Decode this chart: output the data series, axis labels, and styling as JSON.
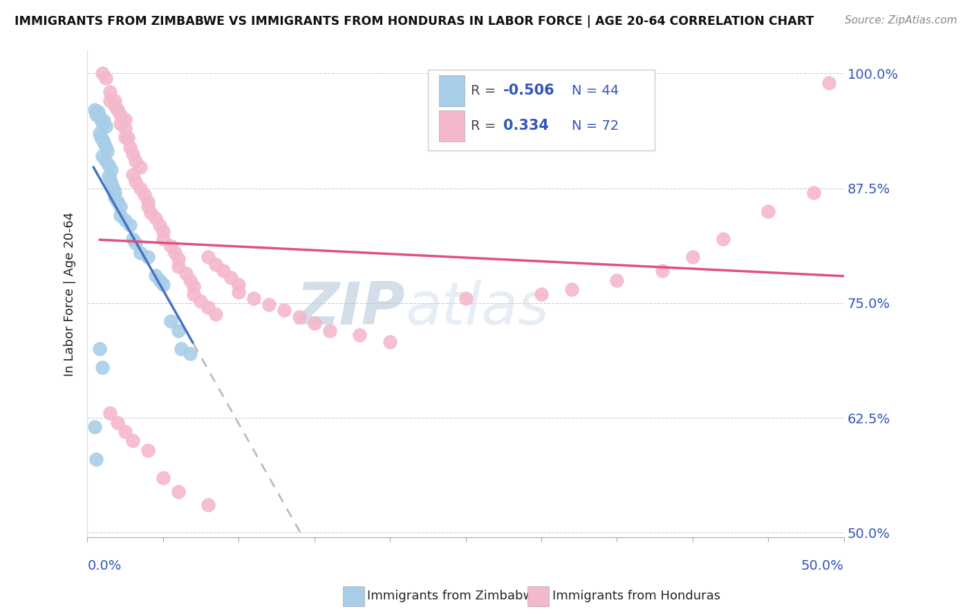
{
  "title": "IMMIGRANTS FROM ZIMBABWE VS IMMIGRANTS FROM HONDURAS IN LABOR FORCE | AGE 20-64 CORRELATION CHART",
  "source": "Source: ZipAtlas.com",
  "ylabel": "In Labor Force | Age 20-64",
  "ytick_labels": [
    "50.0%",
    "62.5%",
    "75.0%",
    "87.5%",
    "100.0%"
  ],
  "ytick_vals": [
    0.5,
    0.625,
    0.75,
    0.875,
    1.0
  ],
  "xmin": 0.0,
  "xmax": 0.5,
  "ymin": 0.495,
  "ymax": 1.025,
  "legend_r_blue": "-0.506",
  "legend_n_blue": "44",
  "legend_r_pink": "0.334",
  "legend_n_pink": "72",
  "blue_color": "#a8cde8",
  "pink_color": "#f4b8cb",
  "blue_line_color": "#4472c4",
  "pink_line_color": "#e05080",
  "watermark_zip": "ZIP",
  "watermark_atlas": "atlas",
  "zimbabwe_x": [
    0.005,
    0.006,
    0.007,
    0.008,
    0.009,
    0.01,
    0.011,
    0.012,
    0.008,
    0.009,
    0.01,
    0.011,
    0.012,
    0.013,
    0.01,
    0.012,
    0.014,
    0.016,
    0.014,
    0.015,
    0.016,
    0.017,
    0.018,
    0.018,
    0.02,
    0.022,
    0.022,
    0.025,
    0.028,
    0.03,
    0.032,
    0.035,
    0.04,
    0.045,
    0.048,
    0.05,
    0.055,
    0.06,
    0.062,
    0.068,
    0.005,
    0.006,
    0.008,
    0.01
  ],
  "zimbabwe_y": [
    0.96,
    0.955,
    0.958,
    0.953,
    0.95,
    0.945,
    0.948,
    0.942,
    0.935,
    0.93,
    0.928,
    0.925,
    0.92,
    0.915,
    0.91,
    0.905,
    0.9,
    0.895,
    0.888,
    0.885,
    0.88,
    0.875,
    0.87,
    0.865,
    0.86,
    0.855,
    0.845,
    0.84,
    0.835,
    0.82,
    0.815,
    0.805,
    0.8,
    0.78,
    0.775,
    0.77,
    0.73,
    0.72,
    0.7,
    0.695,
    0.615,
    0.58,
    0.7,
    0.68
  ],
  "honduras_x": [
    0.01,
    0.012,
    0.015,
    0.018,
    0.02,
    0.022,
    0.025,
    0.027,
    0.015,
    0.018,
    0.02,
    0.022,
    0.025,
    0.025,
    0.028,
    0.03,
    0.032,
    0.035,
    0.03,
    0.032,
    0.035,
    0.038,
    0.04,
    0.04,
    0.042,
    0.045,
    0.048,
    0.05,
    0.05,
    0.055,
    0.058,
    0.06,
    0.06,
    0.065,
    0.068,
    0.07,
    0.07,
    0.075,
    0.08,
    0.085,
    0.08,
    0.085,
    0.09,
    0.095,
    0.1,
    0.1,
    0.11,
    0.12,
    0.13,
    0.14,
    0.15,
    0.16,
    0.18,
    0.2,
    0.25,
    0.3,
    0.32,
    0.35,
    0.38,
    0.4,
    0.42,
    0.45,
    0.48,
    0.49,
    0.015,
    0.02,
    0.025,
    0.03,
    0.04,
    0.05,
    0.06,
    0.08
  ],
  "honduras_y": [
    1.0,
    0.995,
    0.98,
    0.97,
    0.96,
    0.945,
    0.94,
    0.93,
    0.97,
    0.965,
    0.96,
    0.955,
    0.95,
    0.93,
    0.92,
    0.912,
    0.905,
    0.898,
    0.89,
    0.882,
    0.875,
    0.868,
    0.86,
    0.855,
    0.848,
    0.842,
    0.835,
    0.828,
    0.82,
    0.812,
    0.805,
    0.798,
    0.79,
    0.782,
    0.775,
    0.768,
    0.76,
    0.752,
    0.745,
    0.738,
    0.8,
    0.792,
    0.785,
    0.778,
    0.77,
    0.762,
    0.755,
    0.748,
    0.742,
    0.735,
    0.728,
    0.72,
    0.715,
    0.708,
    0.755,
    0.76,
    0.765,
    0.775,
    0.785,
    0.8,
    0.82,
    0.85,
    0.87,
    0.99,
    0.63,
    0.62,
    0.61,
    0.6,
    0.59,
    0.56,
    0.545,
    0.53
  ],
  "zim_line_start_x": 0.004,
  "zim_line_end_solid_x": 0.07,
  "zim_line_end_dash_x": 0.5,
  "hon_line_start_x": 0.008,
  "hon_line_end_x": 0.5
}
